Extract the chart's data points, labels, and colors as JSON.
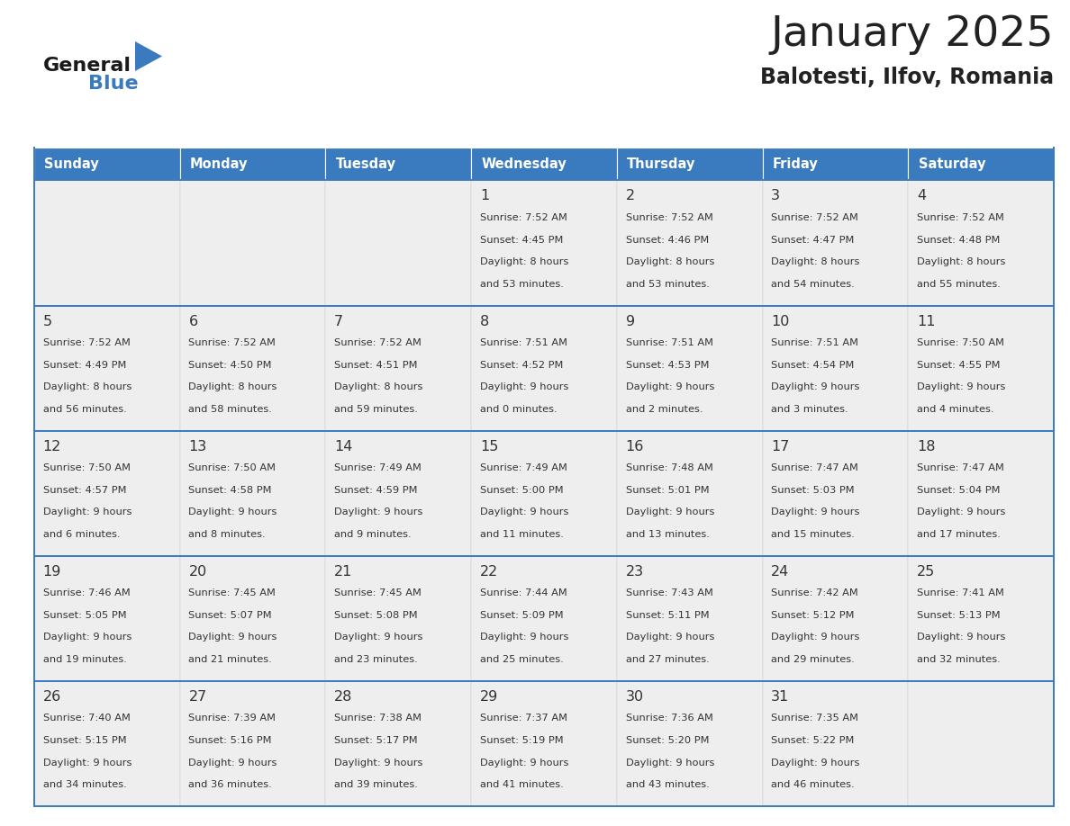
{
  "title": "January 2025",
  "subtitle": "Balotesti, Ilfov, Romania",
  "days_of_week": [
    "Sunday",
    "Monday",
    "Tuesday",
    "Wednesday",
    "Thursday",
    "Friday",
    "Saturday"
  ],
  "header_bg": "#3a7abf",
  "header_text": "#ffffff",
  "cell_bg": "#eeeeee",
  "day_number_color": "#333333",
  "info_text_color": "#333333",
  "border_color": "#3a7abf",
  "title_color": "#222222",
  "subtitle_color": "#222222",
  "calendar_data": [
    [
      null,
      null,
      null,
      {
        "day": 1,
        "sunrise": "7:52 AM",
        "sunset": "4:45 PM",
        "dl1": "Daylight: 8 hours",
        "dl2": "and 53 minutes."
      },
      {
        "day": 2,
        "sunrise": "7:52 AM",
        "sunset": "4:46 PM",
        "dl1": "Daylight: 8 hours",
        "dl2": "and 53 minutes."
      },
      {
        "day": 3,
        "sunrise": "7:52 AM",
        "sunset": "4:47 PM",
        "dl1": "Daylight: 8 hours",
        "dl2": "and 54 minutes."
      },
      {
        "day": 4,
        "sunrise": "7:52 AM",
        "sunset": "4:48 PM",
        "dl1": "Daylight: 8 hours",
        "dl2": "and 55 minutes."
      }
    ],
    [
      {
        "day": 5,
        "sunrise": "7:52 AM",
        "sunset": "4:49 PM",
        "dl1": "Daylight: 8 hours",
        "dl2": "and 56 minutes."
      },
      {
        "day": 6,
        "sunrise": "7:52 AM",
        "sunset": "4:50 PM",
        "dl1": "Daylight: 8 hours",
        "dl2": "and 58 minutes."
      },
      {
        "day": 7,
        "sunrise": "7:52 AM",
        "sunset": "4:51 PM",
        "dl1": "Daylight: 8 hours",
        "dl2": "and 59 minutes."
      },
      {
        "day": 8,
        "sunrise": "7:51 AM",
        "sunset": "4:52 PM",
        "dl1": "Daylight: 9 hours",
        "dl2": "and 0 minutes."
      },
      {
        "day": 9,
        "sunrise": "7:51 AM",
        "sunset": "4:53 PM",
        "dl1": "Daylight: 9 hours",
        "dl2": "and 2 minutes."
      },
      {
        "day": 10,
        "sunrise": "7:51 AM",
        "sunset": "4:54 PM",
        "dl1": "Daylight: 9 hours",
        "dl2": "and 3 minutes."
      },
      {
        "day": 11,
        "sunrise": "7:50 AM",
        "sunset": "4:55 PM",
        "dl1": "Daylight: 9 hours",
        "dl2": "and 4 minutes."
      }
    ],
    [
      {
        "day": 12,
        "sunrise": "7:50 AM",
        "sunset": "4:57 PM",
        "dl1": "Daylight: 9 hours",
        "dl2": "and 6 minutes."
      },
      {
        "day": 13,
        "sunrise": "7:50 AM",
        "sunset": "4:58 PM",
        "dl1": "Daylight: 9 hours",
        "dl2": "and 8 minutes."
      },
      {
        "day": 14,
        "sunrise": "7:49 AM",
        "sunset": "4:59 PM",
        "dl1": "Daylight: 9 hours",
        "dl2": "and 9 minutes."
      },
      {
        "day": 15,
        "sunrise": "7:49 AM",
        "sunset": "5:00 PM",
        "dl1": "Daylight: 9 hours",
        "dl2": "and 11 minutes."
      },
      {
        "day": 16,
        "sunrise": "7:48 AM",
        "sunset": "5:01 PM",
        "dl1": "Daylight: 9 hours",
        "dl2": "and 13 minutes."
      },
      {
        "day": 17,
        "sunrise": "7:47 AM",
        "sunset": "5:03 PM",
        "dl1": "Daylight: 9 hours",
        "dl2": "and 15 minutes."
      },
      {
        "day": 18,
        "sunrise": "7:47 AM",
        "sunset": "5:04 PM",
        "dl1": "Daylight: 9 hours",
        "dl2": "and 17 minutes."
      }
    ],
    [
      {
        "day": 19,
        "sunrise": "7:46 AM",
        "sunset": "5:05 PM",
        "dl1": "Daylight: 9 hours",
        "dl2": "and 19 minutes."
      },
      {
        "day": 20,
        "sunrise": "7:45 AM",
        "sunset": "5:07 PM",
        "dl1": "Daylight: 9 hours",
        "dl2": "and 21 minutes."
      },
      {
        "day": 21,
        "sunrise": "7:45 AM",
        "sunset": "5:08 PM",
        "dl1": "Daylight: 9 hours",
        "dl2": "and 23 minutes."
      },
      {
        "day": 22,
        "sunrise": "7:44 AM",
        "sunset": "5:09 PM",
        "dl1": "Daylight: 9 hours",
        "dl2": "and 25 minutes."
      },
      {
        "day": 23,
        "sunrise": "7:43 AM",
        "sunset": "5:11 PM",
        "dl1": "Daylight: 9 hours",
        "dl2": "and 27 minutes."
      },
      {
        "day": 24,
        "sunrise": "7:42 AM",
        "sunset": "5:12 PM",
        "dl1": "Daylight: 9 hours",
        "dl2": "and 29 minutes."
      },
      {
        "day": 25,
        "sunrise": "7:41 AM",
        "sunset": "5:13 PM",
        "dl1": "Daylight: 9 hours",
        "dl2": "and 32 minutes."
      }
    ],
    [
      {
        "day": 26,
        "sunrise": "7:40 AM",
        "sunset": "5:15 PM",
        "dl1": "Daylight: 9 hours",
        "dl2": "and 34 minutes."
      },
      {
        "day": 27,
        "sunrise": "7:39 AM",
        "sunset": "5:16 PM",
        "dl1": "Daylight: 9 hours",
        "dl2": "and 36 minutes."
      },
      {
        "day": 28,
        "sunrise": "7:38 AM",
        "sunset": "5:17 PM",
        "dl1": "Daylight: 9 hours",
        "dl2": "and 39 minutes."
      },
      {
        "day": 29,
        "sunrise": "7:37 AM",
        "sunset": "5:19 PM",
        "dl1": "Daylight: 9 hours",
        "dl2": "and 41 minutes."
      },
      {
        "day": 30,
        "sunrise": "7:36 AM",
        "sunset": "5:20 PM",
        "dl1": "Daylight: 9 hours",
        "dl2": "and 43 minutes."
      },
      {
        "day": 31,
        "sunrise": "7:35 AM",
        "sunset": "5:22 PM",
        "dl1": "Daylight: 9 hours",
        "dl2": "and 46 minutes."
      },
      null
    ]
  ]
}
